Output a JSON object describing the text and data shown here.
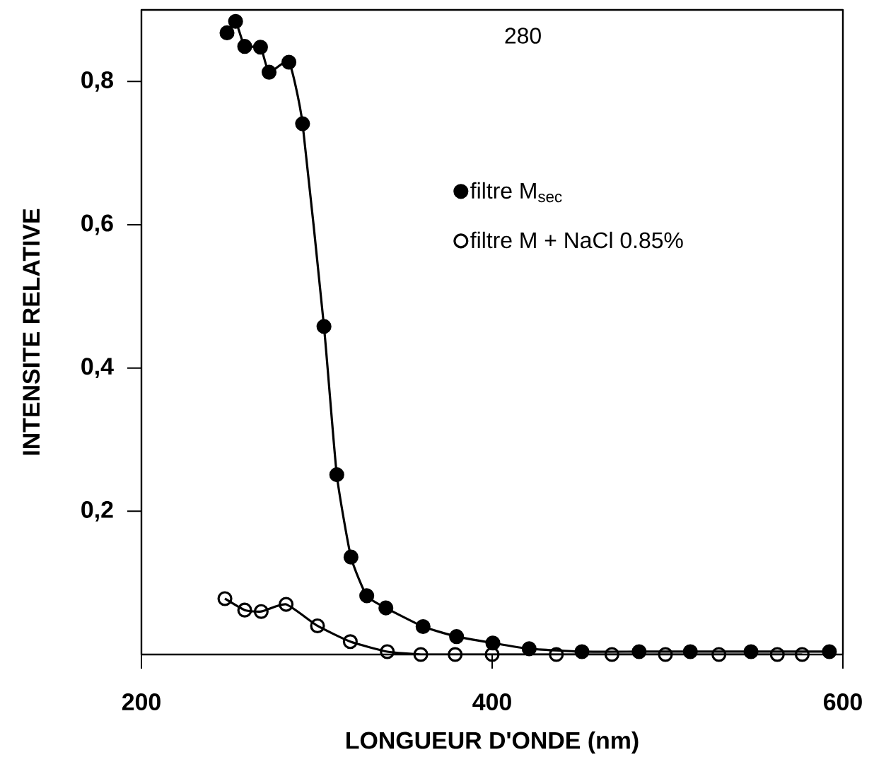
{
  "chart_data": {
    "type": "line",
    "xlabel": "LONGUEUR   D'ONDE   (nm)",
    "ylabel": "INTENSITE   RELATIVE",
    "xlim": [
      200,
      600
    ],
    "ylim": [
      0,
      0.9
    ],
    "xticks": [
      200,
      400,
      600
    ],
    "yticks": [
      {
        "value": 0.2,
        "label": "0,2"
      },
      {
        "value": 0.4,
        "label": "0,4"
      },
      {
        "value": 0.6,
        "label": "0,6"
      },
      {
        "value": 0.8,
        "label": "0,8"
      }
    ],
    "marker": "circle",
    "legend": "right",
    "annotations": [
      "280"
    ],
    "series": [
      {
        "name": "filtre  M$_{sec}$",
        "color": "#000000",
        "x": [
          248.8,
          253.7,
          258.9,
          267.9,
          272.8,
          284.1,
          291.9,
          304.1,
          311.4,
          319.5,
          328.5,
          339.4,
          360.6,
          379.7,
          400.4,
          421.1,
          451.2,
          483.8,
          513.0,
          547.6,
          592.3
        ],
        "values": [
          0.868,
          0.884,
          0.849,
          0.848,
          0.813,
          0.827,
          0.741,
          0.458,
          0.251,
          0.136,
          0.082,
          0.065,
          0.039,
          0.025,
          0.016,
          0.008,
          0.004,
          0.004,
          0.004,
          0.004,
          0.004
        ]
      },
      {
        "name": "filtre  M + NaCl  0.85%",
        "color": "#000000",
        "x": [
          247.6,
          258.9,
          268.3,
          282.5,
          300.4,
          319.1,
          340.2,
          359.3,
          378.9,
          400.0,
          436.6,
          468.3,
          498.8,
          529.3,
          562.6,
          576.8
        ],
        "values": [
          0.078,
          0.062,
          0.06,
          0.07,
          0.04,
          0.018,
          0.004,
          0.0,
          0.0,
          0.0,
          0.0,
          0.0,
          0.0,
          0.0,
          0.0,
          0.0
        ]
      }
    ]
  }
}
